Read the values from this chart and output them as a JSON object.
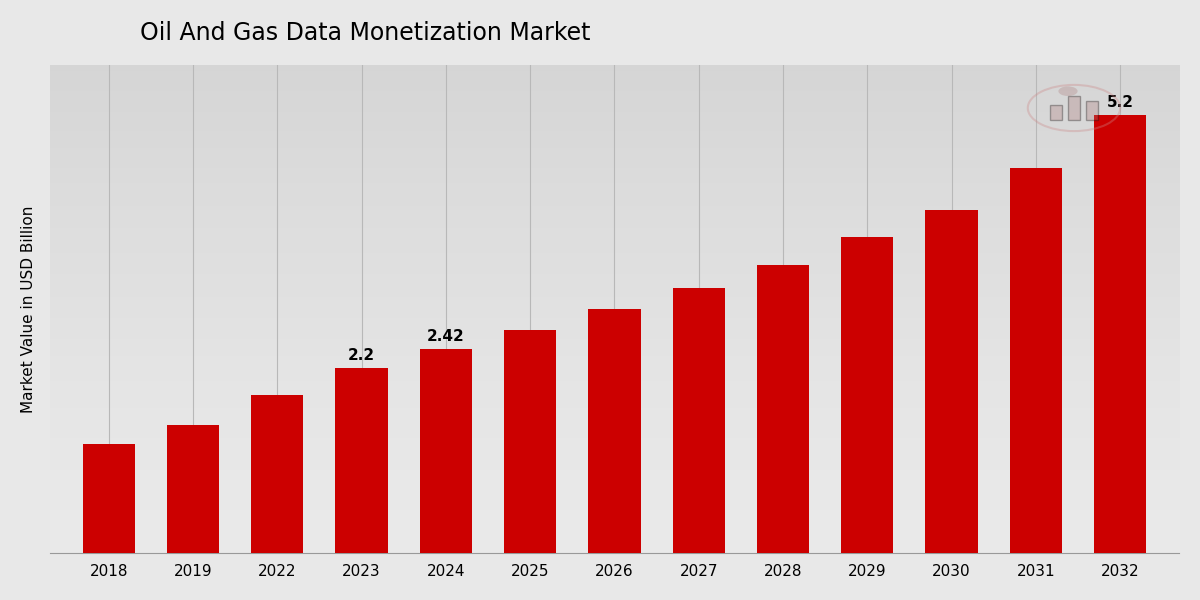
{
  "title": "Oil And Gas Data Monetization Market",
  "ylabel": "Market Value in USD Billion",
  "categories": [
    "2018",
    "2019",
    "2022",
    "2023",
    "2024",
    "2025",
    "2026",
    "2027",
    "2028",
    "2029",
    "2030",
    "2031",
    "2032"
  ],
  "values": [
    1.3,
    1.52,
    1.88,
    2.2,
    2.42,
    2.65,
    2.9,
    3.15,
    3.42,
    3.75,
    4.08,
    4.58,
    5.2
  ],
  "bar_color": "#cc0000",
  "background_top": "#e8e8e8",
  "background_bottom": "#d0d0d0",
  "annotations": {
    "2023": "2.2",
    "2024": "2.42",
    "2032": "5.2"
  },
  "ylim": [
    0,
    5.8
  ],
  "title_fontsize": 17,
  "label_fontsize": 11,
  "tick_fontsize": 11,
  "annotation_fontsize": 11
}
